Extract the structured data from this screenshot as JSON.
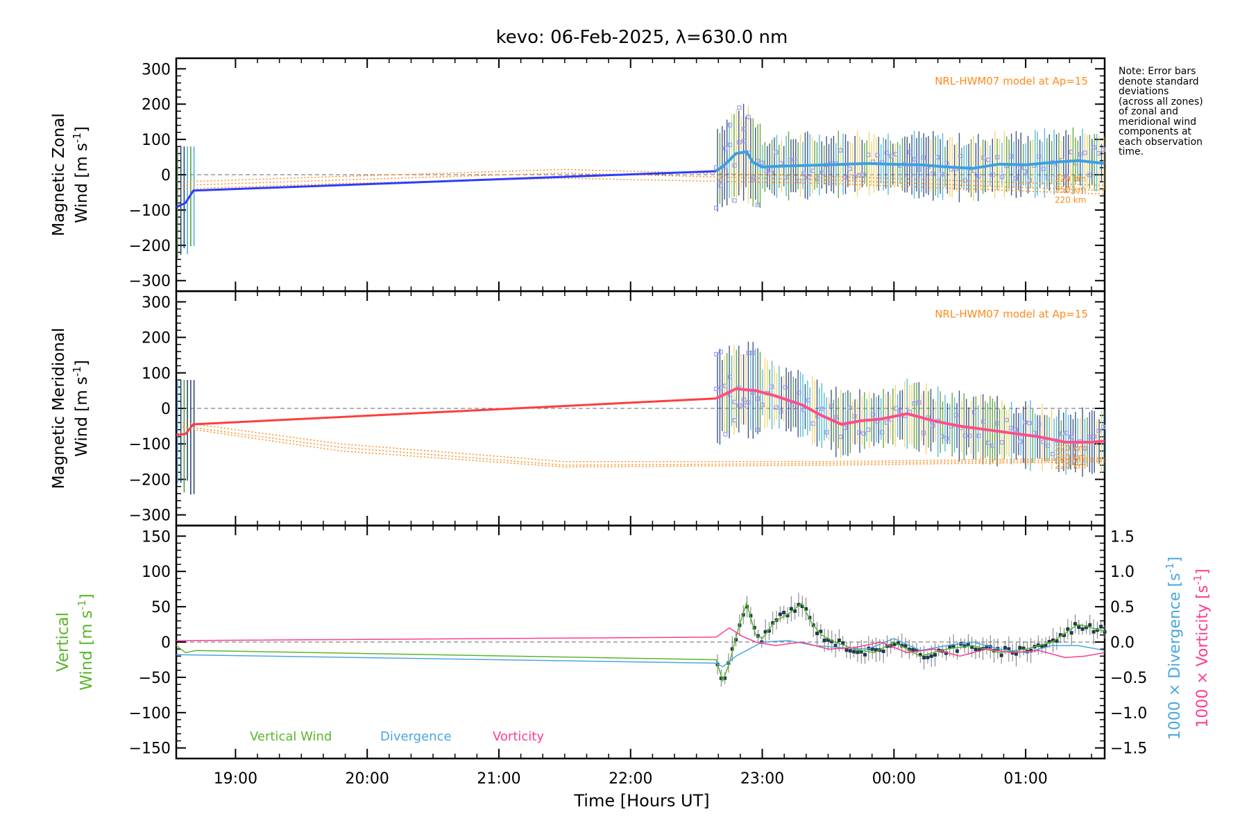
{
  "title": "kevo: 06-Feb-2025, λ=630.0 nm",
  "note": "Note: Error bars\ndenote standard\ndeviations\n(across all zones)\nof zonal and\nmeridional wind\ncomponents at\neach observation\ntime.",
  "xlabel": "Time [Hours UT]",
  "colors": {
    "zonal": "#2d3cff",
    "meridional": "#ff3d3d",
    "site": "#3aa0e0",
    "site_merid": "#ff4d88",
    "model": "#ff8a1a",
    "scatter": "#9c9cf0",
    "errbar_dark": "#1e3a6e",
    "errbar_green": "#4c9a2a",
    "errbar_cyan": "#3ab0d8",
    "errbar_yellow": "#f0d060",
    "vertical": "#5ab62a",
    "divergence": "#4aa6e0",
    "vorticity": "#ff3b8d"
  },
  "chart_data": [
    {
      "type": "line",
      "panel": "zonal",
      "ylabel_line1": "Magnetic Zonal",
      "ylabel_line2": "Wind [m s",
      "ylabel_sup": "-1",
      "ylabel_close": "]",
      "ylim": [
        -330,
        330
      ],
      "yticks": [
        -300,
        -200,
        -100,
        0,
        100,
        200,
        300
      ],
      "ytick_labels": [
        "−300",
        "−200",
        "−100",
        "0",
        "100",
        "200",
        "300"
      ],
      "model_label": "NRL-HWM07 model at Ap=15",
      "altitude_labels": [
        "220 km",
        "250 km",
        "220 km"
      ],
      "series": [
        {
          "name": "Zonal wind",
          "x": [
            18.55,
            18.62,
            18.68,
            22.65
          ],
          "y": [
            -92,
            -80,
            -45,
            10
          ]
        },
        {
          "name": "Zonal site mean",
          "x": [
            22.65,
            22.72,
            22.8,
            22.88,
            22.93,
            23.0,
            23.2,
            23.5,
            23.8,
            23.95,
            24.2,
            24.4,
            24.6,
            24.8,
            25.0,
            25.2,
            25.4,
            25.6
          ],
          "y": [
            10,
            30,
            60,
            65,
            35,
            22,
            25,
            28,
            32,
            30,
            28,
            22,
            18,
            30,
            28,
            35,
            40,
            32
          ]
        }
      ]
    },
    {
      "type": "line",
      "panel": "meridional",
      "ylabel_line1": "Magnetic Meridional",
      "ylabel_line2": "Wind [m s",
      "ylabel_sup": "-1",
      "ylabel_close": "]",
      "ylim": [
        -330,
        330
      ],
      "yticks": [
        -300,
        -200,
        -100,
        0,
        100,
        200,
        300
      ],
      "ytick_labels": [
        "−300",
        "−200",
        "−100",
        "0",
        "100",
        "200",
        "300"
      ],
      "model_label": "NRL-HWM07 model at Ap=15",
      "altitude_labels": [
        "220 km",
        "250 km",
        "220 km"
      ],
      "series": [
        {
          "name": "Meridional wind",
          "x": [
            18.55,
            18.62,
            18.68,
            22.65
          ],
          "y": [
            -75,
            -72,
            -45,
            28
          ]
        },
        {
          "name": "Meridional site mean",
          "x": [
            22.65,
            22.8,
            22.95,
            23.1,
            23.3,
            23.45,
            23.6,
            23.75,
            23.9,
            24.1,
            24.3,
            24.5,
            24.7,
            24.9,
            25.1,
            25.3,
            25.5,
            25.6
          ],
          "y": [
            28,
            55,
            50,
            35,
            10,
            -20,
            -45,
            -35,
            -30,
            -15,
            -35,
            -50,
            -60,
            -70,
            -80,
            -95,
            -95,
            -92
          ]
        }
      ]
    },
    {
      "type": "line",
      "panel": "vertical",
      "ylabel_left_line1": "Vertical",
      "ylabel_left_line2": "Wind [m s",
      "ylabel_sup": "-1",
      "ylabel_close": "]",
      "ylabel_right1": "1000 × Divergence [s",
      "ylabel_right2": "1000 × Vorticity [s",
      "ylim": [
        -165,
        165
      ],
      "yticks": [
        -150,
        -100,
        -50,
        0,
        50,
        100,
        150
      ],
      "ytick_labels": [
        "−150",
        "−100",
        "−50",
        "0",
        "50",
        "100",
        "150"
      ],
      "y2lim": [
        -1.65,
        1.65
      ],
      "y2ticks": [
        -1.5,
        -1.0,
        -0.5,
        0.0,
        0.5,
        1.0,
        1.5
      ],
      "y2tick_labels": [
        "−1.5",
        "−1.0",
        "−0.5",
        "0.0",
        "0.5",
        "1.0",
        "1.5"
      ],
      "legend": [
        "Vertical Wind",
        "Divergence",
        "Vorticity"
      ],
      "series": [
        {
          "name": "Vertical Wind",
          "axis": "left",
          "x": [
            18.55,
            18.62,
            18.7,
            22.65,
            22.7,
            22.75,
            22.82,
            22.88,
            22.95,
            23.0,
            23.1,
            23.2,
            23.3,
            23.38,
            23.45,
            23.55,
            23.7,
            23.85,
            24.0,
            24.2,
            24.4,
            24.6,
            24.8,
            25.0,
            25.2,
            25.4,
            25.6
          ],
          "y": [
            -5,
            -15,
            -12,
            -25,
            -55,
            -30,
            20,
            55,
            10,
            5,
            30,
            40,
            55,
            25,
            10,
            0,
            -10,
            -15,
            0,
            -20,
            -10,
            -5,
            -15,
            -10,
            0,
            25,
            15
          ]
        },
        {
          "name": "Divergence",
          "axis": "right",
          "x": [
            18.55,
            22.65,
            22.7,
            22.8,
            22.9,
            23.0,
            23.2,
            23.4,
            23.6,
            23.8,
            24.0,
            24.2,
            24.4,
            24.6,
            24.8,
            25.0,
            25.2,
            25.4,
            25.6
          ],
          "y": [
            -0.18,
            -0.3,
            -0.35,
            -0.2,
            -0.1,
            0.0,
            0.02,
            -0.05,
            -0.08,
            -0.1,
            0.05,
            -0.12,
            -0.05,
            0.0,
            -0.1,
            -0.15,
            -0.05,
            -0.05,
            -0.12
          ]
        },
        {
          "name": "Vorticity",
          "axis": "right",
          "x": [
            18.55,
            22.65,
            22.75,
            22.85,
            22.95,
            23.1,
            23.3,
            23.5,
            23.7,
            23.9,
            24.1,
            24.3,
            24.5,
            24.7,
            24.9,
            25.1,
            25.3,
            25.45,
            25.6
          ],
          "y": [
            0.02,
            0.07,
            0.2,
            0.08,
            0.0,
            -0.05,
            0.0,
            -0.1,
            -0.08,
            0.0,
            -0.15,
            -0.1,
            -0.2,
            -0.1,
            -0.15,
            -0.12,
            -0.22,
            -0.2,
            -0.15
          ]
        }
      ]
    }
  ],
  "x_axis": {
    "xlim": [
      18.55,
      25.6
    ],
    "xticks": [
      19,
      20,
      21,
      22,
      23,
      24,
      25
    ],
    "xtick_labels": [
      "19:00",
      "20:00",
      "21:00",
      "22:00",
      "23:00",
      "00:00",
      "01:00"
    ]
  }
}
